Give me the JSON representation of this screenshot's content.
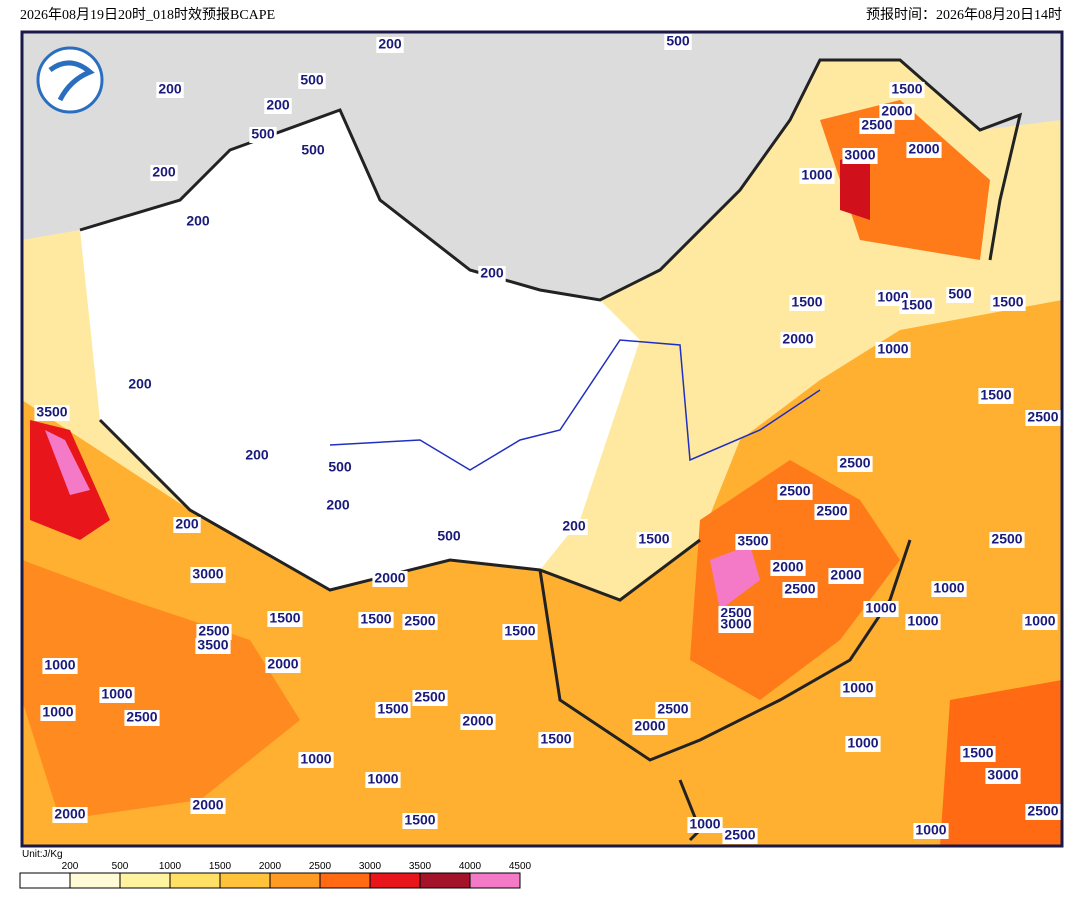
{
  "header": {
    "left": "2026年08月19日20时_018时效预报BCAPE",
    "right": "预报时间：2026年08月20日14时"
  },
  "unit": "Unit:J/Kg",
  "colorbar": {
    "ticks": [
      200,
      500,
      1000,
      1500,
      2000,
      2500,
      3000,
      3500,
      4000,
      4500
    ],
    "colors": [
      "#ffffff",
      "#fffbd6",
      "#fff3a0",
      "#ffe066",
      "#ffc23a",
      "#ff9a22",
      "#ff6a12",
      "#e8161a",
      "#a3142a",
      "#f47ac8"
    ]
  },
  "contour_labels": [
    200,
    500,
    200,
    500,
    200,
    500,
    500,
    200,
    200,
    200,
    1500,
    2000,
    2500,
    3000,
    2000,
    1000,
    1500,
    1000,
    1500,
    500,
    1500,
    2000,
    1000,
    1500,
    2500,
    200,
    3500,
    200,
    500,
    200,
    200,
    500,
    200,
    1500,
    3500,
    2500,
    2500,
    2500,
    2500,
    2000,
    2000,
    2500,
    3000,
    2000,
    2500,
    3000,
    1500,
    1500,
    2500,
    2500,
    3500,
    1000,
    1000,
    1000,
    1000,
    1000,
    2000,
    1500,
    1000,
    1000,
    2500,
    2500,
    1500,
    2000,
    2500,
    2000,
    1500,
    1000,
    1000,
    1000,
    1000,
    1500,
    3000,
    2000,
    2000,
    1500,
    1000,
    2500,
    1000,
    2500
  ]
}
